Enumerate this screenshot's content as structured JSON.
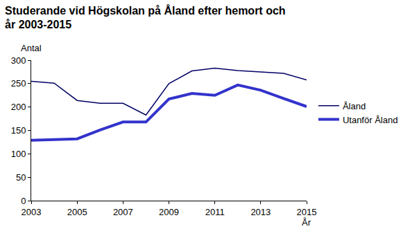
{
  "chart_data": {
    "type": "line",
    "title": [
      "Studerande vid Högskolan på Åland efter hemort och",
      "år 2003-2015"
    ],
    "y_label": "Antal",
    "x_label": "År",
    "x": [
      2003,
      2004,
      2005,
      2006,
      2007,
      2008,
      2009,
      2010,
      2011,
      2012,
      2013,
      2014,
      2015
    ],
    "series": [
      {
        "name": "Åland",
        "color": "#000066",
        "values": [
          255,
          251,
          214,
          208,
          208,
          183,
          250,
          277,
          283,
          278,
          275,
          272,
          258
        ]
      },
      {
        "name": "Utanför Åland",
        "color": "#3333cc",
        "values": [
          129,
          130,
          132,
          151,
          168,
          168,
          217,
          229,
          225,
          247,
          236,
          218,
          201
        ]
      }
    ],
    "xlim": [
      2003,
      2015
    ],
    "xticks": [
      2003,
      2005,
      2007,
      2009,
      2011,
      2013,
      2015
    ],
    "ylim": [
      0,
      300
    ],
    "yticks": [
      0,
      50,
      100,
      150,
      200,
      250,
      300
    ],
    "grid": false,
    "legend": "right"
  }
}
